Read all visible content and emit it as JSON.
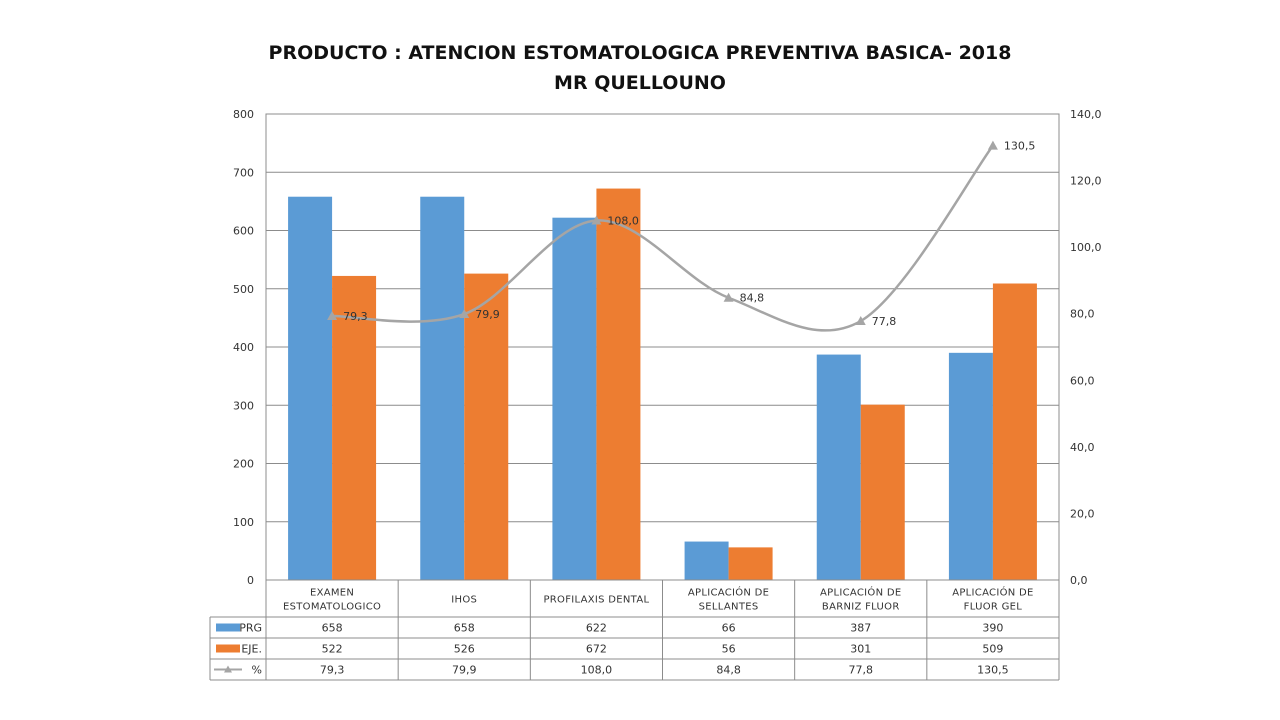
{
  "chart_data": {
    "type": "bar",
    "title": "PRODUCTO : ATENCION ESTOMATOLOGICA PREVENTIVA BASICA- 2018",
    "subtitle": "MR QUELLOUNO",
    "categories": [
      [
        "EXAMEN",
        "ESTOMATOLOGICO"
      ],
      [
        "IHOS"
      ],
      [
        "PROFILAXIS DENTAL"
      ],
      [
        "APLICACIÓN DE",
        "SELLANTES"
      ],
      [
        "APLICACIÓN DE",
        "BARNIZ FLUOR"
      ],
      [
        "APLICACIÓN DE",
        "FLUOR GEL"
      ]
    ],
    "series": [
      {
        "name": "PRG",
        "kind": "bar",
        "axis": "left",
        "color": "#5B9BD5",
        "values": [
          658,
          658,
          622,
          66,
          387,
          390
        ],
        "labels": [
          "658",
          "658",
          "622",
          "66",
          "387",
          "390"
        ]
      },
      {
        "name": "EJE.",
        "kind": "bar",
        "axis": "left",
        "color": "#ED7D31",
        "values": [
          522,
          526,
          672,
          56,
          301,
          509
        ],
        "labels": [
          "522",
          "526",
          "672",
          "56",
          "301",
          "509"
        ]
      },
      {
        "name": "%",
        "kind": "line",
        "axis": "right",
        "color": "#A5A5A5",
        "marker": "triangle",
        "smooth": true,
        "values": [
          79.3,
          79.9,
          108.0,
          84.8,
          77.8,
          130.5
        ],
        "labels": [
          "79,3",
          "79,9",
          "108,0",
          "84,8",
          "77,8",
          "130,5"
        ]
      }
    ],
    "y_left": {
      "min": 0,
      "max": 800,
      "ticks": [
        "0",
        "100",
        "200",
        "300",
        "400",
        "500",
        "600",
        "700",
        "800"
      ]
    },
    "y_right": {
      "min": 0,
      "max": 140,
      "ticks": [
        "0,0",
        "20,0",
        "40,0",
        "60,0",
        "80,0",
        "100,0",
        "120,0",
        "140,0"
      ]
    },
    "grid": true,
    "legend": "data-table"
  }
}
